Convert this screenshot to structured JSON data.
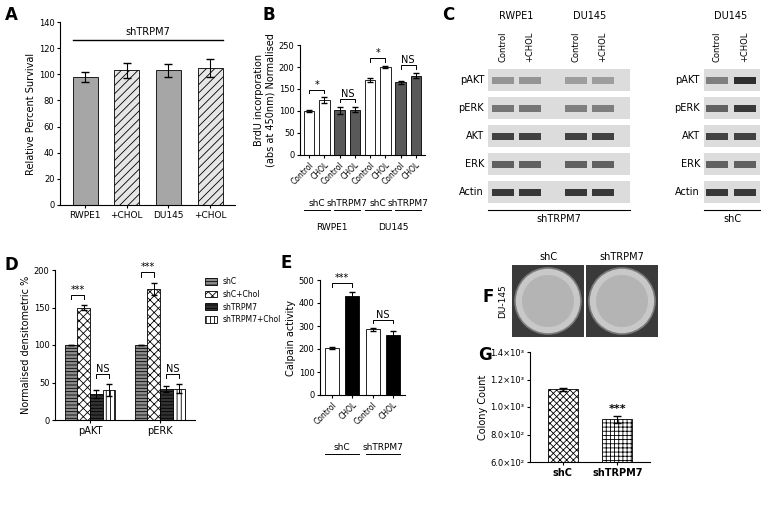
{
  "chart_data": [
    {
      "type": "bar",
      "title": "A",
      "categories": [
        "RWPE1",
        "+CHOL",
        "DU145",
        "+CHOL"
      ],
      "values": [
        98,
        103,
        103,
        105
      ],
      "errors": [
        4,
        6,
        5,
        7
      ],
      "colors": [
        "#a6a6a6",
        "#e6e6e6",
        "#a6a6a6",
        "#e6e6e6"
      ],
      "ylabel": "Relative Percent Survival",
      "ylim": [
        0,
        140
      ],
      "yticks": [
        0,
        20,
        40,
        60,
        80,
        100,
        120,
        140
      ],
      "annotations": [
        "shTRPM7"
      ]
    },
    {
      "type": "bar",
      "title": "B",
      "categories": [
        "Control",
        "CHOL",
        "Control",
        "CHOL",
        "Control",
        "CHOL",
        "Control",
        "CHOL"
      ],
      "values": [
        100,
        125,
        102,
        103,
        170,
        200,
        165,
        180
      ],
      "errors": [
        2,
        6,
        8,
        5,
        4,
        2,
        4,
        6
      ],
      "colors": [
        "#ffffff",
        "#ffffff",
        "#595959",
        "#595959",
        "#ffffff",
        "#ffffff",
        "#595959",
        "#595959"
      ],
      "ylabel": "BrdU incorporation\n(abs at 450nm) Normalised",
      "ylim": [
        0,
        250
      ],
      "yticks": [
        0,
        50,
        100,
        150,
        200,
        250
      ],
      "groups": [
        "shC",
        "shTRPM7",
        "shC",
        "shTRPM7"
      ],
      "supergroups": [
        "RWPE1",
        "DU145"
      ],
      "annotations": [
        "*",
        "NS",
        "*",
        "NS"
      ]
    },
    {
      "type": "bar",
      "title": "D",
      "categories": [
        "pAKT",
        "pERK"
      ],
      "series": [
        {
          "name": "shC",
          "color": "#8c8c8c",
          "values": [
            100,
            100
          ],
          "errors": [
            0,
            0
          ]
        },
        {
          "name": "shC+Chol",
          "color": "#ffffff",
          "values": [
            150,
            175
          ],
          "errors": [
            3,
            8
          ]
        },
        {
          "name": "shTRPM7",
          "color": "#333333",
          "values": [
            35,
            42
          ],
          "errors": [
            5,
            4
          ]
        },
        {
          "name": "shTRPM7+Chol",
          "color": "#ffffff",
          "values": [
            40,
            42
          ],
          "errors": [
            8,
            6
          ]
        }
      ],
      "ylabel": "Normalised densitometric %",
      "ylim": [
        0,
        200
      ],
      "yticks": [
        0,
        50,
        100,
        150,
        200
      ],
      "legend": "right",
      "annotations": [
        "***",
        "NS",
        "***",
        "NS"
      ]
    },
    {
      "type": "bar",
      "title": "E",
      "categories": [
        "Control",
        "CHOL",
        "Control",
        "CHOL"
      ],
      "values": [
        205,
        430,
        285,
        262
      ],
      "errors": [
        5,
        20,
        8,
        15
      ],
      "colors": [
        "#ffffff",
        "#000000",
        "#ffffff",
        "#000000"
      ],
      "ylabel": "Calpain activity",
      "ylim": [
        0,
        500
      ],
      "yticks": [
        0,
        100,
        200,
        300,
        400,
        500
      ],
      "groups": [
        "shC",
        "shTRPM7"
      ],
      "annotations": [
        "***",
        "NS"
      ]
    },
    {
      "type": "bar",
      "title": "G",
      "categories": [
        "shC",
        "shTRPM7"
      ],
      "values": [
        1130,
        910
      ],
      "errors": [
        10,
        25
      ],
      "colors": [
        "#ffffff",
        "#ffffff"
      ],
      "ylabel": "Colony Count",
      "ylim": [
        600,
        1400
      ],
      "yticks": [
        {
          "value": 600,
          "label": "6.0×10²"
        },
        {
          "value": 800,
          "label": "8.0×10²"
        },
        {
          "value": 1000,
          "label": "1.0×10³"
        },
        {
          "value": 1200,
          "label": "1.2×10³"
        },
        {
          "value": 1400,
          "label": "1.4×10³"
        }
      ],
      "annotations": [
        "***"
      ]
    }
  ],
  "western_blot": {
    "title": "C",
    "rows": [
      "pAKT",
      "pERK",
      "AKT",
      "ERK",
      "Actin"
    ],
    "lanes": [
      "Control",
      "+CHOL"
    ],
    "blots": [
      {
        "label": "shTRPM7",
        "cells": [
          "RWPE1",
          "DU145"
        ],
        "intensity": [
          [
            0.35,
            0.35,
            0.3,
            0.3
          ],
          [
            0.5,
            0.5,
            0.45,
            0.45
          ],
          [
            0.75,
            0.75,
            0.75,
            0.75
          ],
          [
            0.6,
            0.6,
            0.6,
            0.6
          ],
          [
            0.8,
            0.8,
            0.8,
            0.8
          ]
        ]
      },
      {
        "label": "shC",
        "cells": [
          "DU145"
        ],
        "intensity": [
          [
            0.45,
            0.85
          ],
          [
            0.6,
            0.8
          ],
          [
            0.75,
            0.75
          ],
          [
            0.6,
            0.6
          ],
          [
            0.8,
            0.8
          ]
        ]
      }
    ]
  },
  "colony_assay": {
    "title": "F",
    "cell_line": "DU-145",
    "conditions": [
      "shC",
      "shTRPM7"
    ]
  }
}
